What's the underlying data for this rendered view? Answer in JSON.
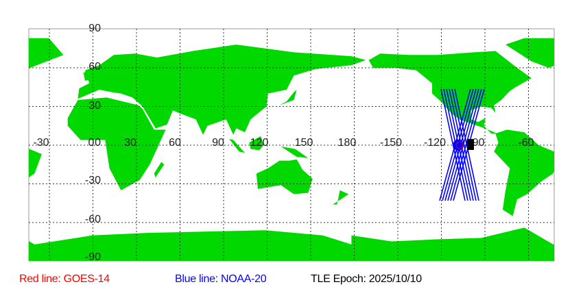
{
  "map": {
    "projection": "equirectangular",
    "land_color": "#00d800",
    "ocean_color": "#ffffff",
    "grid": "dotted",
    "lon_labels": [
      "-30",
      "0",
      "30",
      "60",
      "90",
      "120",
      "150",
      "180",
      "-150",
      "-120",
      "-90",
      "-60"
    ],
    "lat_labels": [
      "90",
      "60",
      "30",
      "0",
      "-30",
      "-60",
      "-90"
    ]
  },
  "satellites": [
    {
      "name": "GOES-14",
      "line_color": "#ff0000"
    },
    {
      "name": "NOAA-20",
      "line_color": "#0000ff"
    }
  ],
  "legend": {
    "red": "Red line: GOES-14",
    "blue": "Blue line: NOAA-20",
    "epoch": "TLE Epoch: 2025/10/10"
  }
}
